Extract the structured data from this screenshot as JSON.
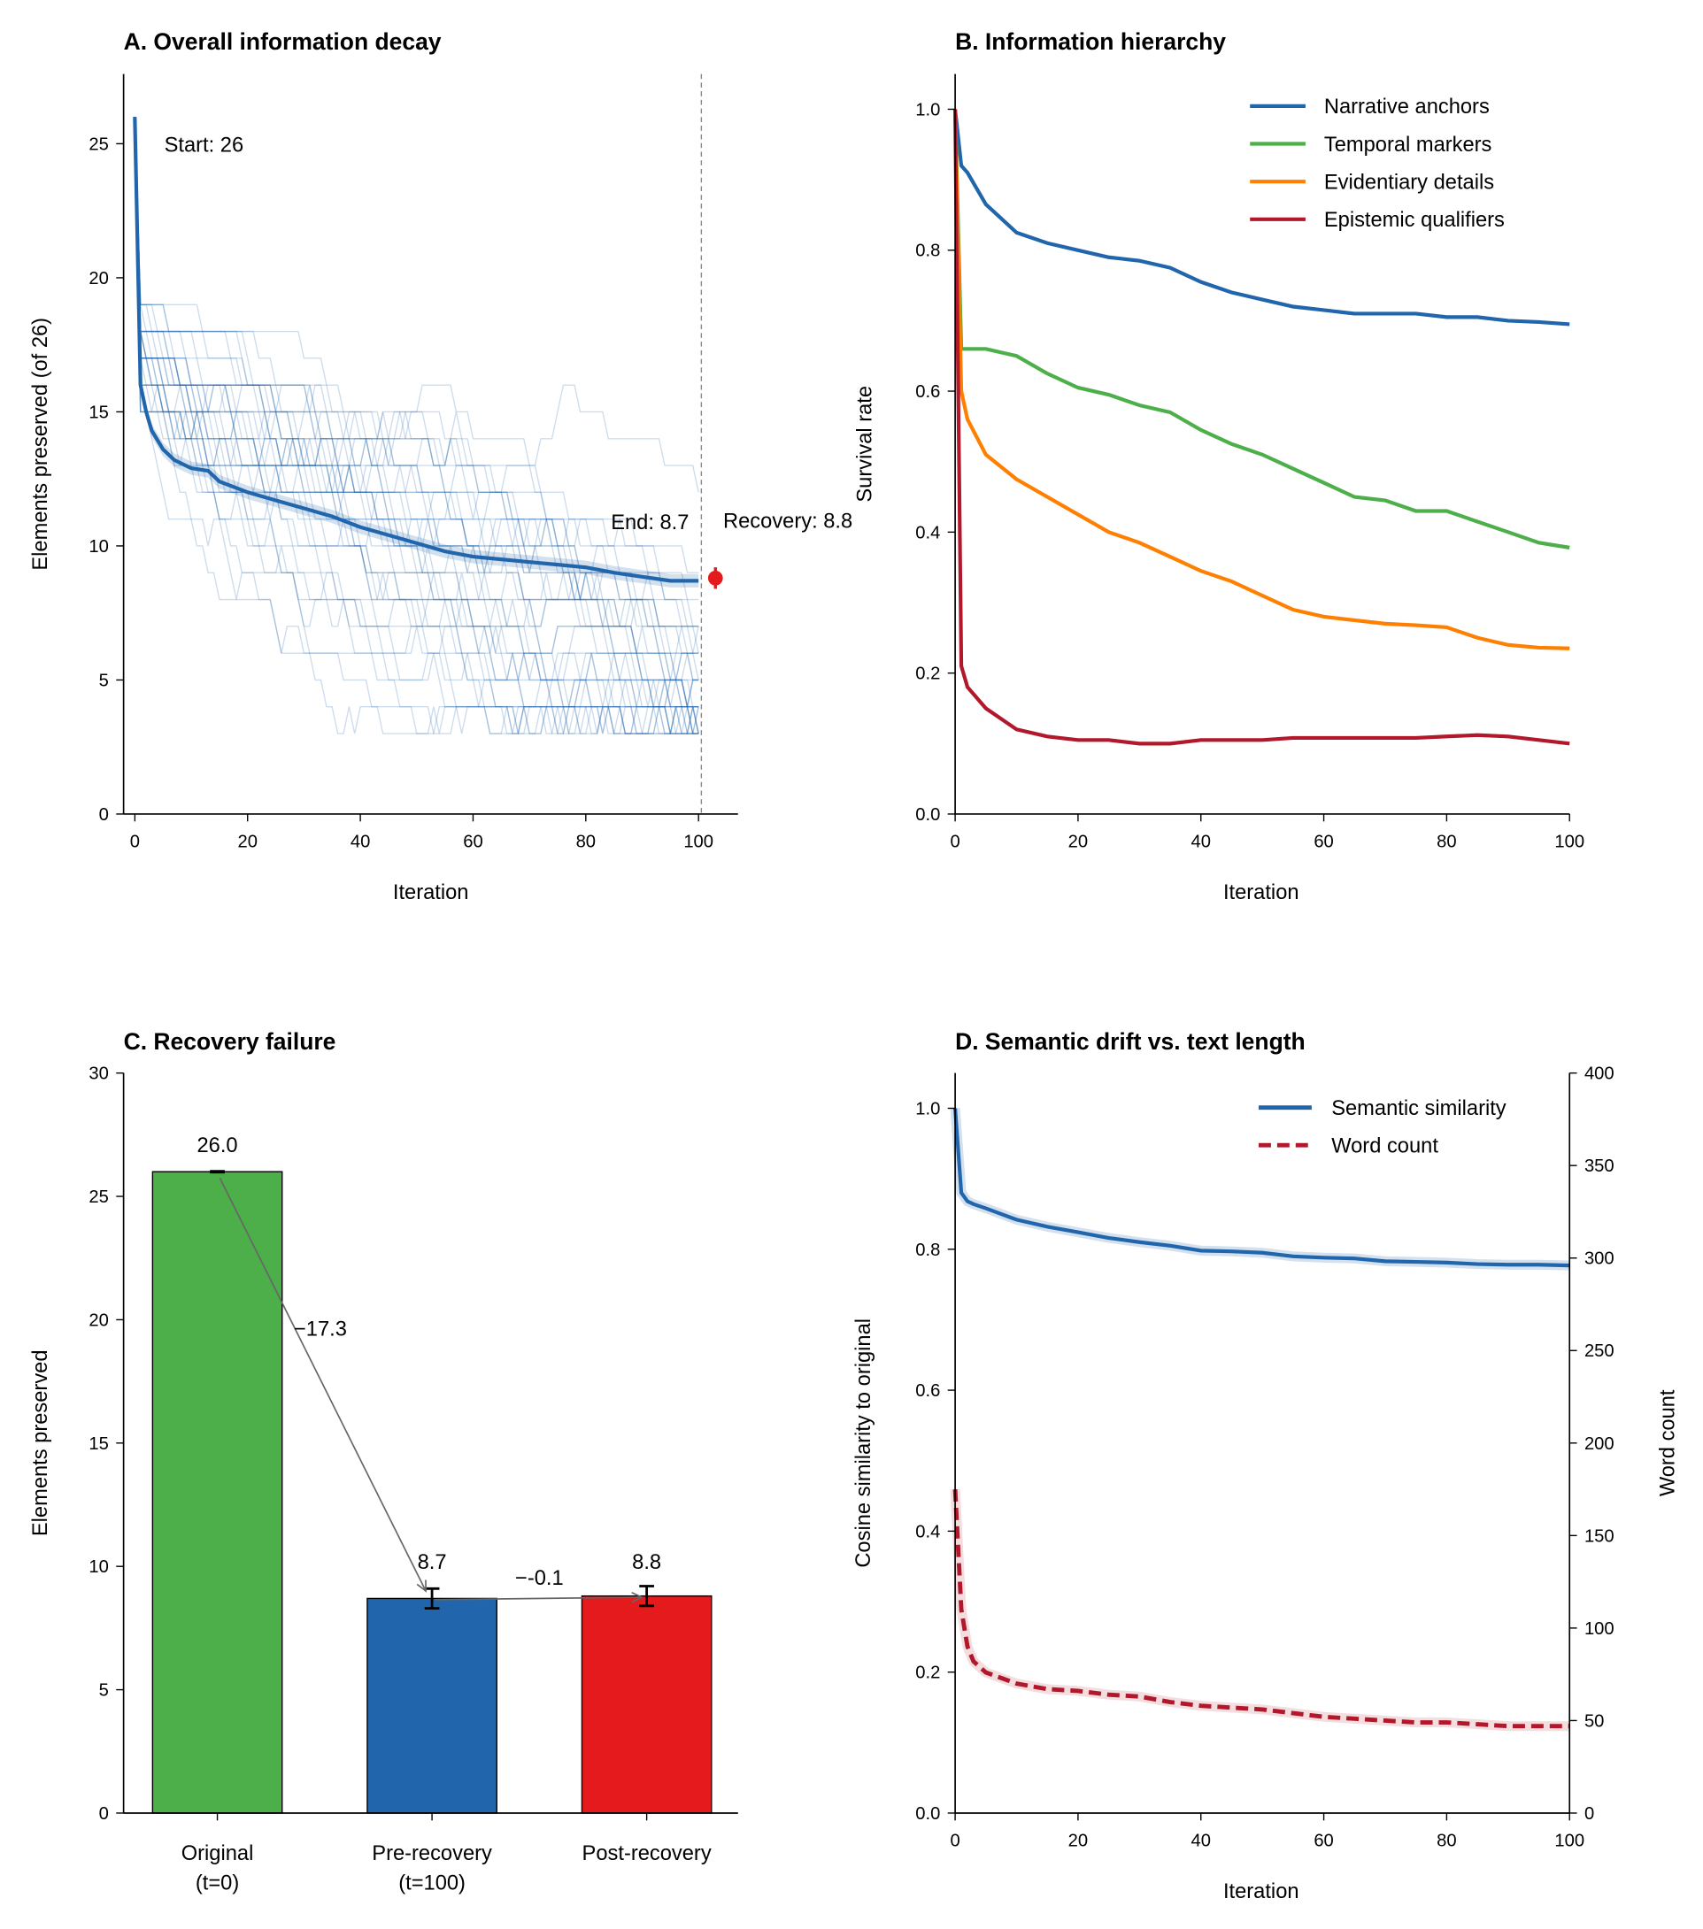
{
  "colors": {
    "blue": "#2166ac",
    "green": "#4daf4a",
    "orange": "#ff7f00",
    "crimson": "#b2182b",
    "red": "#e41a1c",
    "gray": "#666666"
  },
  "chart_data": [
    {
      "type": "line",
      "title": "A. Overall information decay",
      "xlabel": "Iteration",
      "ylabel": "Elements preserved (of 26)",
      "xlim": [
        -2,
        107
      ],
      "ylim": [
        0,
        27.6
      ],
      "xticks": [
        0,
        20,
        40,
        60,
        80,
        100
      ],
      "yticks": [
        0,
        5,
        10,
        15,
        20,
        25
      ],
      "mean": {
        "x": [
          0,
          1,
          2,
          3,
          5,
          7,
          10,
          13,
          15,
          20,
          25,
          30,
          35,
          40,
          45,
          50,
          55,
          60,
          65,
          70,
          75,
          80,
          85,
          90,
          95,
          100
        ],
        "y": [
          26,
          16,
          15,
          14.3,
          13.6,
          13.2,
          12.9,
          12.8,
          12.4,
          12.0,
          11.7,
          11.4,
          11.1,
          10.7,
          10.4,
          10.1,
          9.8,
          9.6,
          9.5,
          9.4,
          9.3,
          9.2,
          9.0,
          8.85,
          8.7,
          8.7
        ]
      },
      "recovery_point": {
        "x": 103,
        "y": 8.8,
        "err": 0.4
      },
      "cutoff_x": 100.5,
      "annotations": {
        "start": "Start: 26",
        "end": "End: 8.7",
        "recovery": "Recovery: 8.8"
      },
      "grid": false
    },
    {
      "type": "line",
      "title": "B. Information hierarchy",
      "xlabel": "Iteration",
      "ylabel": "Survival rate",
      "xlim": [
        0,
        100
      ],
      "ylim": [
        0,
        1.05
      ],
      "xticks": [
        0,
        20,
        40,
        60,
        80,
        100
      ],
      "yticks": [
        "0.0",
        "0.2",
        "0.4",
        "0.6",
        "0.8",
        "1.0"
      ],
      "legend": "top-right",
      "x": [
        0,
        1,
        2,
        5,
        10,
        15,
        20,
        25,
        30,
        35,
        40,
        45,
        50,
        55,
        60,
        65,
        70,
        75,
        80,
        85,
        90,
        95,
        100
      ],
      "series": [
        {
          "name": "Narrative anchors",
          "color": "#2166ac",
          "values": [
            1.0,
            0.92,
            0.91,
            0.865,
            0.825,
            0.81,
            0.8,
            0.79,
            0.785,
            0.775,
            0.755,
            0.74,
            0.73,
            0.72,
            0.715,
            0.71,
            0.71,
            0.71,
            0.705,
            0.705,
            0.7,
            0.698,
            0.695
          ]
        },
        {
          "name": "Temporal markers",
          "color": "#4daf4a",
          "values": [
            1.0,
            0.66,
            0.66,
            0.66,
            0.65,
            0.625,
            0.605,
            0.595,
            0.58,
            0.57,
            0.545,
            0.525,
            0.51,
            0.49,
            0.47,
            0.45,
            0.445,
            0.43,
            0.43,
            0.415,
            0.4,
            0.385,
            0.378
          ]
        },
        {
          "name": "Evidentiary details",
          "color": "#ff7f00",
          "values": [
            1.0,
            0.6,
            0.56,
            0.51,
            0.475,
            0.45,
            0.425,
            0.4,
            0.385,
            0.365,
            0.345,
            0.33,
            0.31,
            0.29,
            0.28,
            0.275,
            0.27,
            0.268,
            0.265,
            0.25,
            0.24,
            0.236,
            0.235
          ]
        },
        {
          "name": "Epistemic qualifiers",
          "color": "#b2182b",
          "values": [
            1.0,
            0.21,
            0.18,
            0.15,
            0.12,
            0.11,
            0.105,
            0.105,
            0.1,
            0.1,
            0.105,
            0.105,
            0.105,
            0.108,
            0.108,
            0.108,
            0.108,
            0.108,
            0.11,
            0.112,
            0.11,
            0.105,
            0.1
          ]
        }
      ],
      "grid": false
    },
    {
      "type": "bar",
      "title": "C. Recovery failure",
      "ylabel": "Elements preserved",
      "ylim": [
        0,
        30
      ],
      "yticks": [
        0,
        5,
        10,
        15,
        20,
        25,
        30
      ],
      "categories": [
        [
          "Original",
          "(t=0)"
        ],
        [
          "Pre-recovery",
          "(t=100)"
        ],
        [
          "Post-recovery",
          ""
        ]
      ],
      "values": [
        26.0,
        8.7,
        8.8
      ],
      "errors": [
        0.02,
        0.4,
        0.4
      ],
      "value_labels": [
        "26.0",
        "8.7",
        "8.8"
      ],
      "bar_colors": [
        "#4daf4a",
        "#2166ac",
        "#e41a1c"
      ],
      "arrows": [
        {
          "from": 0,
          "to": 1,
          "label": "−17.3"
        },
        {
          "from": 1,
          "to": 2,
          "label": "−-0.1"
        }
      ],
      "grid": false
    },
    {
      "type": "line",
      "title": "D. Semantic drift vs. text length",
      "xlabel": "Iteration",
      "ylabel": "Cosine similarity to original",
      "y2label": "Word count",
      "xlim": [
        0,
        100
      ],
      "ylim": [
        0,
        1.05
      ],
      "y2lim": [
        0,
        400
      ],
      "xticks": [
        0,
        20,
        40,
        60,
        80,
        100
      ],
      "yticks": [
        "0.0",
        "0.2",
        "0.4",
        "0.6",
        "0.8",
        "1.0"
      ],
      "y2ticks": [
        0,
        50,
        100,
        150,
        200,
        250,
        300,
        350,
        400
      ],
      "legend": "top-right",
      "x": [
        0,
        1,
        2,
        3,
        5,
        10,
        15,
        20,
        25,
        30,
        35,
        40,
        45,
        50,
        55,
        60,
        65,
        70,
        75,
        80,
        85,
        90,
        95,
        100
      ],
      "series": [
        {
          "name": "Semantic similarity",
          "axis": "left",
          "color": "#2166ac",
          "style": "solid",
          "values": [
            1.0,
            0.88,
            0.868,
            0.864,
            0.858,
            0.842,
            0.832,
            0.824,
            0.816,
            0.81,
            0.805,
            0.798,
            0.797,
            0.795,
            0.79,
            0.788,
            0.787,
            0.783,
            0.782,
            0.781,
            0.779,
            0.778,
            0.778,
            0.777
          ]
        },
        {
          "name": "Word count",
          "axis": "right",
          "color": "#b2182b",
          "style": "dashed",
          "values": [
            175,
            110,
            90,
            82,
            76,
            70,
            67,
            66,
            64,
            63,
            60,
            58,
            57,
            56,
            54,
            52,
            51,
            50,
            49,
            49,
            48,
            47,
            47,
            47
          ]
        }
      ],
      "grid": false
    }
  ]
}
